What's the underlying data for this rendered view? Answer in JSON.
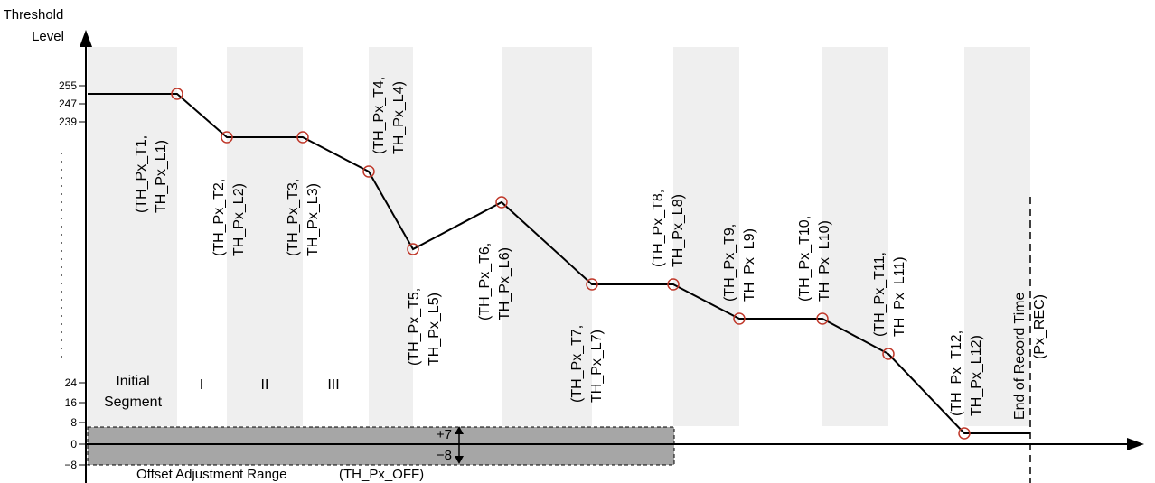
{
  "axis": {
    "y_title_line1": "Threshold",
    "y_title_line2": "Level",
    "y_ticks": [
      "255",
      "247",
      "239",
      "24",
      "16",
      "8",
      "0",
      "−8"
    ]
  },
  "segments": {
    "initial_line1": "Initial",
    "initial_line2": "Segment",
    "roman": [
      "I",
      "II",
      "III"
    ]
  },
  "points": [
    {
      "line1": "(TH_Px_T1,",
      "line2": "TH_Px_L1)"
    },
    {
      "line1": "(TH_Px_T2,",
      "line2": "TH_Px_L2)"
    },
    {
      "line1": "(TH_Px_T3,",
      "line2": "TH_Px_L3)"
    },
    {
      "line1": "(TH_Px_T4,",
      "line2": "TH_Px_L4)"
    },
    {
      "line1": "(TH_Px_T5,",
      "line2": "TH_Px_L5)"
    },
    {
      "line1": "(TH_Px_T6,",
      "line2": "TH_Px_L6)"
    },
    {
      "line1": "(TH_Px_T7,",
      "line2": "TH_Px_L7)"
    },
    {
      "line1": "(TH_Px_T8,",
      "line2": "TH_Px_L8)"
    },
    {
      "line1": "(TH_Px_T9,",
      "line2": "TH_Px_L9)"
    },
    {
      "line1": "(TH_Px_T10,",
      "line2": "TH_Px_L10)"
    },
    {
      "line1": "(TH_Px_T11,",
      "line2": "TH_Px_L11)"
    },
    {
      "line1": "(TH_Px_T12,",
      "line2": "TH_Px_L12)"
    }
  ],
  "end_of_record": {
    "line1": "End of Record Time",
    "line2": "(Px_REC)"
  },
  "offset": {
    "plus": "+7",
    "minus": "−8",
    "range_label": "Offset Adjustment Range",
    "range_code": "(TH_Px_OFF)"
  },
  "colors": {
    "band": "#efefef",
    "offset_fill": "#a6a6a6",
    "marker": "#c0392b",
    "line": "#000000"
  }
}
